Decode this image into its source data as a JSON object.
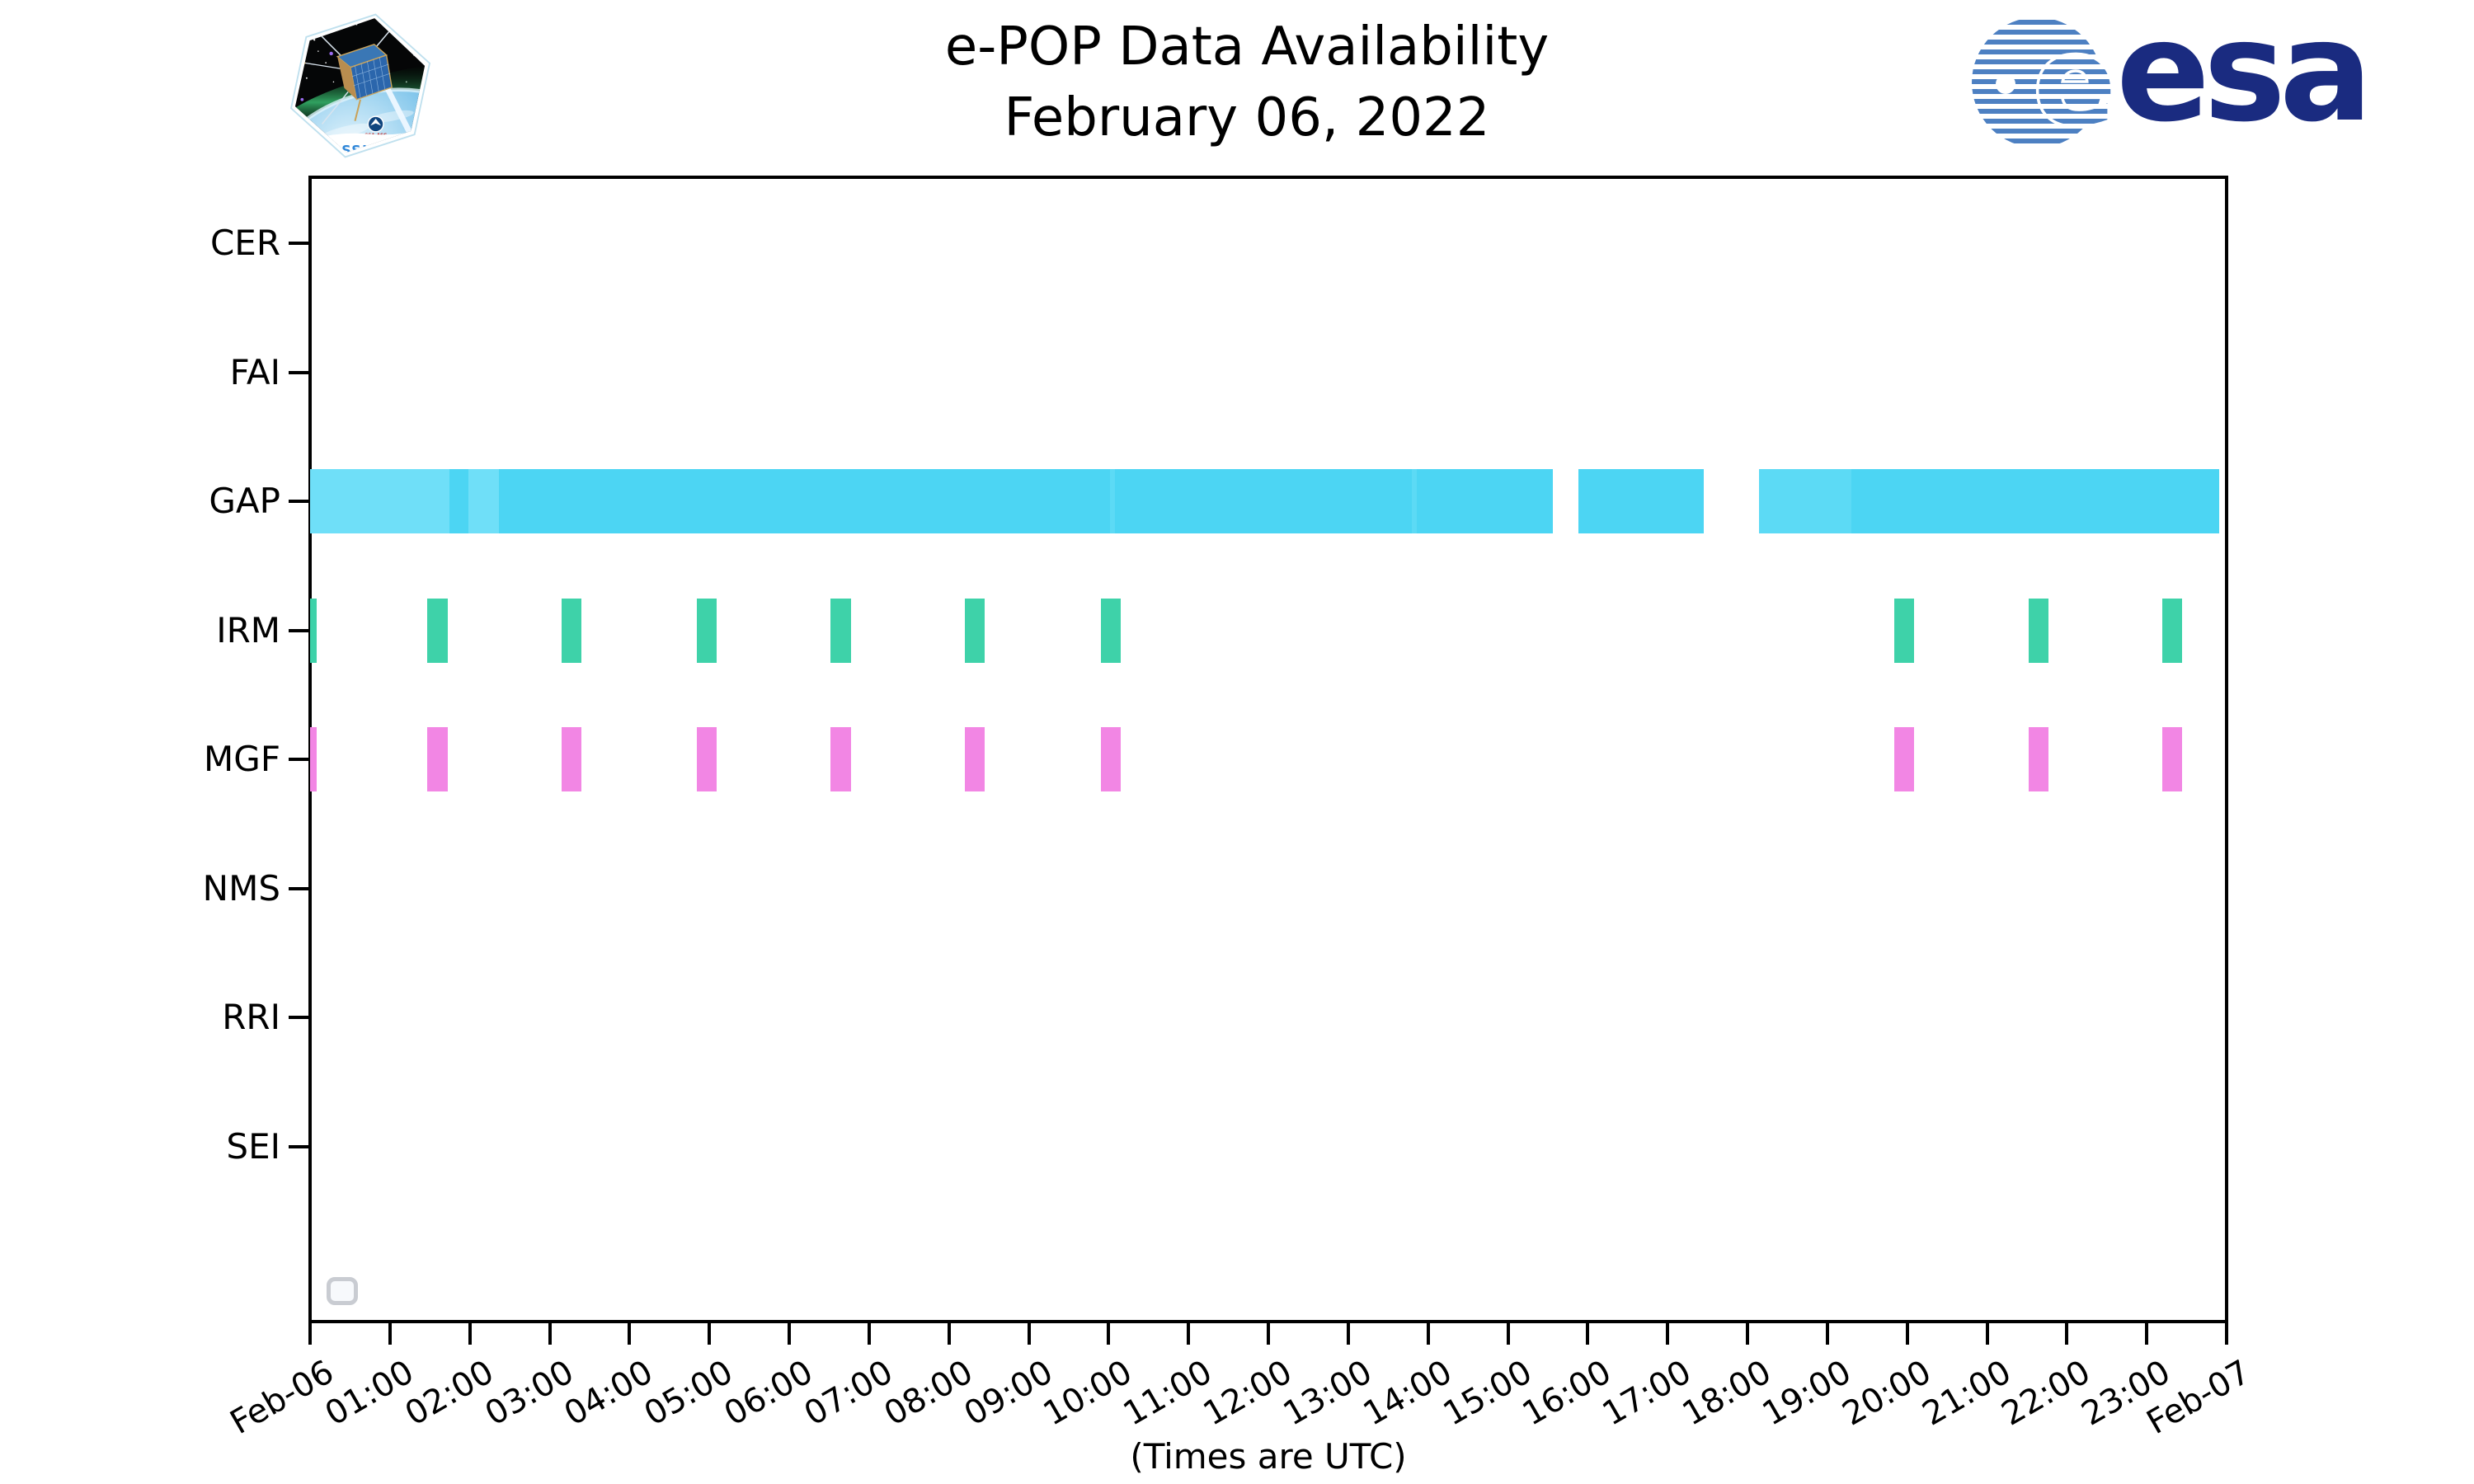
{
  "header": {
    "title_line1": "e-POP Data Availability",
    "title_line2": "February 06, 2022",
    "cassiope_patch_label": "CASSIOPE",
    "cassiope_agency_label": "CSA·ASC",
    "esa_wordmark": "esa"
  },
  "chart_data": {
    "type": "timeline",
    "title": "e-POP Data Availability",
    "subtitle": "February 06, 2022",
    "x_axis": {
      "range_hours": [
        0,
        24
      ],
      "tick_labels": [
        "Feb-06",
        "01:00",
        "02:00",
        "03:00",
        "04:00",
        "05:00",
        "06:00",
        "07:00",
        "08:00",
        "09:00",
        "10:00",
        "11:00",
        "12:00",
        "13:00",
        "14:00",
        "15:00",
        "16:00",
        "17:00",
        "18:00",
        "19:00",
        "20:00",
        "21:00",
        "22:00",
        "23:00",
        "Feb-07"
      ],
      "note": "(Times are UTC)"
    },
    "y_categories": [
      "CER",
      "FAI",
      "GAP",
      "IRM",
      "MGF",
      "NMS",
      "RRI",
      "SEI"
    ],
    "grid": false,
    "legend_position": "lower-left",
    "legend_empty": true,
    "colors": {
      "gap_light": "#6fdff8",
      "gap_mid": "#5cdaf5",
      "gap_dark": "#4cd5f3",
      "irm": "#3ed2a9",
      "mgf": "#f286e4",
      "axis": "#000000",
      "legend_border": "#c9ccd2",
      "legend_fill": "#f7f9fc",
      "esa_navy": "#1a2b80",
      "esa_stripe": "#4d80c2",
      "cassiope_text": "#2e86d8"
    },
    "series": {
      "GAP": {
        "type": "segments",
        "segments": [
          {
            "start": 0.0,
            "end": 1.75,
            "shade": "light"
          },
          {
            "start": 1.75,
            "end": 1.98,
            "shade": "dark"
          },
          {
            "start": 1.98,
            "end": 2.37,
            "shade": "light"
          },
          {
            "start": 2.37,
            "end": 10.02,
            "shade": "dark"
          },
          {
            "start": 10.02,
            "end": 10.08,
            "shade": "mid"
          },
          {
            "start": 10.08,
            "end": 13.8,
            "shade": "dark"
          },
          {
            "start": 13.8,
            "end": 13.86,
            "shade": "mid"
          },
          {
            "start": 13.86,
            "end": 15.56,
            "shade": "dark"
          },
          {
            "start": 15.88,
            "end": 17.45,
            "shade": "dark"
          },
          {
            "start": 18.14,
            "end": 19.3,
            "shade": "mid"
          },
          {
            "start": 19.3,
            "end": 23.91,
            "shade": "dark"
          }
        ]
      },
      "IRM": {
        "type": "passes",
        "color_key": "irm",
        "intervals": [
          [
            0.0,
            0.08
          ],
          [
            1.47,
            1.72
          ],
          [
            3.15,
            3.4
          ],
          [
            4.84,
            5.09
          ],
          [
            6.52,
            6.77
          ],
          [
            8.2,
            8.45
          ],
          [
            9.9,
            10.15
          ],
          [
            19.84,
            20.09
          ],
          [
            21.52,
            21.77
          ],
          [
            23.19,
            23.44
          ]
        ]
      },
      "MGF": {
        "type": "passes",
        "color_key": "mgf",
        "intervals": [
          [
            0.0,
            0.08
          ],
          [
            1.47,
            1.72
          ],
          [
            3.15,
            3.4
          ],
          [
            4.84,
            5.09
          ],
          [
            6.52,
            6.77
          ],
          [
            8.2,
            8.45
          ],
          [
            9.9,
            10.15
          ],
          [
            19.84,
            20.09
          ],
          [
            21.52,
            21.77
          ],
          [
            23.19,
            23.44
          ]
        ]
      }
    }
  }
}
